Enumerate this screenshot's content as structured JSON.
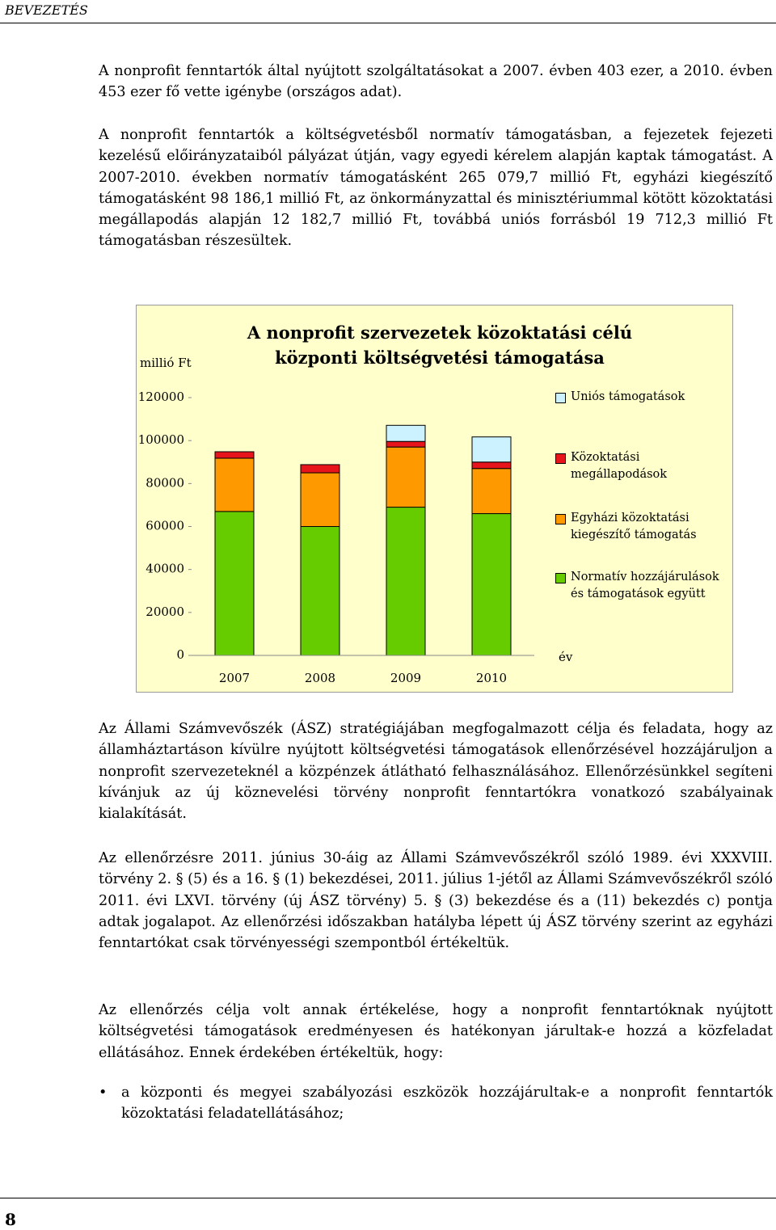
{
  "header": {
    "title": "BEVEZETÉS"
  },
  "paragraphs": [
    "A nonprofit fenntartók által nyújtott szolgáltatásokat a 2007. évben 403 ezer, a 2010. évben 453 ezer fő vette igénybe (országos adat).",
    "A nonprofit fenntartók a költségvetésből normatív támogatásban, a fejezetek fejezeti kezelésű előirányzataiból pályázat útján, vagy egyedi kérelem alapján kaptak támogatást. A 2007-2010. években normatív támogatásként 265 079,7 millió Ft, egyházi kiegészítő támogatásként 98 186,1 millió Ft, az önkormányzattal és minisztériummal kötött közoktatási megállapodás alapján 12 182,7 millió Ft, továbbá uniós forrásból 19 712,3 millió Ft támogatásban részesültek.",
    "Az Állami Számvevőszék (ÁSZ) stratégiájában megfogalmazott célja és feladata, hogy az államháztartáson kívülre nyújtott költségvetési támogatások ellenőrzésével hozzájáruljon a nonprofit szervezeteknél a közpénzek átlátható felhasználásához. Ellenőrzésünkkel segíteni kívánjuk az új köznevelési törvény nonprofit fenntartókra vonatkozó szabályainak kialakítását.",
    "Az ellenőrzésre 2011. június 30-áig az Állami Számvevőszékről szóló 1989. évi XXXVIII. törvény 2. § (5) és a 16. § (1) bekezdései, 2011. július 1-jétől az Állami Számvevőszékről szóló 2011. évi LXVI. törvény (új ÁSZ törvény) 5. § (3) bekezdése és a (11) bekezdés c) pontja adtak jogalapot. Az ellenőrzési időszakban hatályba lépett új ÁSZ törvény szerint az egyházi fenntartókat csak törvényességi szempontból értékeltük.",
    "Az ellenőrzés célja volt annak értékelése, hogy a nonprofit fenntartóknak nyújtott költségvetési támogatások eredményesen és hatékonyan járultak-e hozzá a közfeladat ellátásához. Ennek érdekében értékeltük, hogy:"
  ],
  "bullets": [
    "a központi és megyei szabályozási eszközök hozzájárultak-e a nonprofit fenntartók közoktatási feladatellátásához;"
  ],
  "page_number": "8",
  "chart_data": {
    "type": "stacked-bar",
    "title": "A nonprofit szervezetek közoktatási célú központi költségvetési támogatása",
    "y_label": "millió Ft",
    "x_label": "év",
    "categories": [
      "2007",
      "2008",
      "2009",
      "2010"
    ],
    "series": [
      {
        "name": "Normatív hozzájárulások és támogatások együtt",
        "color": "#66cc00",
        "values": [
          67000,
          60000,
          69000,
          66000
        ]
      },
      {
        "name": "Egyházi közoktatási kiegészítő támogatás",
        "color": "#ff9900",
        "values": [
          24800,
          25000,
          28000,
          21000
        ]
      },
      {
        "name": "Közoktatási megállapodások",
        "color": "#e8141c",
        "values": [
          3000,
          3800,
          2600,
          3000
        ]
      },
      {
        "name": "Uniós támogatások",
        "color": "#ccf2ff",
        "values": [
          0,
          0,
          7500,
          11700
        ]
      }
    ],
    "ylim": [
      0,
      120000
    ],
    "yticks": [
      0,
      20000,
      40000,
      60000,
      80000,
      100000,
      120000
    ],
    "grid": false
  }
}
